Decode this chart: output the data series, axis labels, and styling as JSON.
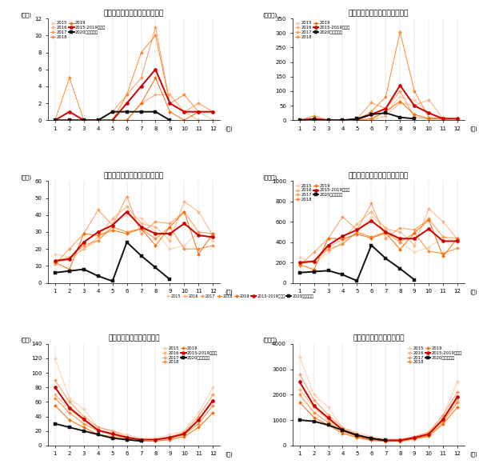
{
  "titles": [
    "腸管出血性大腸菌食中毒事例数",
    "腸管出血性大腸菌食中毒患者数",
    "カンピロバクター食中毒事例数",
    "カンピロバクター食中毒患者数",
    "ノロウイルス食中毒事例数",
    "ノロウイルス食中毒患者数"
  ],
  "ylabel_cases": "(件数)",
  "ylabel_patients": "(患者数)",
  "xlabel": "(月)",
  "months": [
    1,
    2,
    3,
    4,
    5,
    6,
    7,
    8,
    9,
    10,
    11,
    12
  ],
  "legend_labels": [
    "2015",
    "2016",
    "2017",
    "2018",
    "2019",
    "2015-2019の平均",
    "2020（速報値）"
  ],
  "colors": {
    "2015": "#FFCCAA",
    "2016": "#FFB07A",
    "2017": "#FF9955",
    "2018": "#FF8830",
    "2019": "#FF6600",
    "avg": "#CC0000",
    "2020": "#111111"
  },
  "panel0": {
    "ylim": [
      0,
      12
    ],
    "yticks": [
      0,
      2,
      4,
      6,
      8,
      10,
      12
    ],
    "data_2015": [
      0,
      0,
      0,
      0,
      0,
      0,
      2,
      3,
      3,
      1,
      1,
      0
    ],
    "data_2016": [
      0,
      0,
      0,
      0,
      0,
      0,
      2,
      3,
      3,
      1,
      0,
      0
    ],
    "data_2017": [
      0,
      0,
      0,
      0,
      1,
      3,
      5,
      11,
      2,
      1,
      2,
      1
    ],
    "data_2018": [
      0,
      5,
      0,
      0,
      0,
      3,
      8,
      10,
      2,
      3,
      1,
      1
    ],
    "data_2019": [
      0,
      0,
      0,
      0,
      0,
      0,
      2,
      5,
      1,
      0,
      1,
      1
    ],
    "data_avg": [
      0,
      1,
      0,
      0,
      0,
      2,
      4,
      6,
      2,
      1,
      1,
      1
    ],
    "data_2020": [
      0,
      0,
      0,
      0,
      1,
      1,
      1,
      1,
      0,
      null,
      null,
      null
    ]
  },
  "panel1": {
    "ylim": [
      0,
      350
    ],
    "yticks": [
      0,
      50,
      100,
      150,
      200,
      250,
      300,
      350
    ],
    "data_2015": [
      0,
      0,
      0,
      0,
      0,
      0,
      30,
      80,
      70,
      25,
      0,
      0
    ],
    "data_2016": [
      0,
      0,
      0,
      0,
      0,
      0,
      15,
      60,
      50,
      70,
      5,
      5
    ],
    "data_2017": [
      0,
      0,
      0,
      0,
      5,
      60,
      40,
      100,
      10,
      5,
      10,
      5
    ],
    "data_2018": [
      0,
      15,
      0,
      0,
      0,
      30,
      80,
      305,
      100,
      10,
      5,
      5
    ],
    "data_2019": [
      0,
      0,
      0,
      0,
      0,
      5,
      30,
      65,
      20,
      5,
      5,
      5
    ],
    "data_avg": [
      0,
      5,
      0,
      0,
      2,
      20,
      40,
      120,
      50,
      25,
      5,
      5
    ],
    "data_2020": [
      0,
      0,
      0,
      0,
      5,
      20,
      25,
      10,
      5,
      null,
      null,
      null
    ]
  },
  "panel2": {
    "ylim": [
      0,
      60
    ],
    "yticks": [
      0,
      10,
      20,
      30,
      40,
      50,
      60
    ],
    "data_2015": [
      17,
      15,
      20,
      25,
      35,
      40,
      38,
      30,
      20,
      22,
      30,
      25
    ],
    "data_2016": [
      12,
      14,
      20,
      27,
      38,
      45,
      35,
      33,
      25,
      48,
      42,
      28
    ],
    "data_2017": [
      11,
      20,
      29,
      43,
      34,
      51,
      29,
      36,
      35,
      42,
      30,
      29
    ],
    "data_2018": [
      13,
      15,
      22,
      25,
      33,
      30,
      32,
      26,
      33,
      20,
      20,
      22
    ],
    "data_2019": [
      12,
      8,
      29,
      28,
      31,
      29,
      32,
      22,
      33,
      42,
      17,
      29
    ],
    "data_avg": [
      13,
      14,
      24,
      30,
      34,
      42,
      33,
      29,
      29,
      35,
      28,
      27
    ],
    "data_2020": [
      6,
      7,
      8,
      4,
      1,
      24,
      16,
      9,
      2,
      null,
      null,
      null
    ]
  },
  "panel3": {
    "ylim": [
      0,
      1000
    ],
    "yticks": [
      0,
      200,
      400,
      600,
      800,
      1000
    ],
    "data_2015": [
      250,
      200,
      300,
      400,
      500,
      650,
      550,
      400,
      300,
      350,
      450,
      400
    ],
    "data_2016": [
      180,
      220,
      350,
      430,
      580,
      700,
      530,
      500,
      370,
      730,
      600,
      430
    ],
    "data_2017": [
      170,
      300,
      440,
      650,
      520,
      780,
      440,
      540,
      520,
      630,
      450,
      440
    ],
    "data_2018": [
      200,
      220,
      330,
      380,
      500,
      450,
      500,
      400,
      490,
      310,
      290,
      340
    ],
    "data_2019": [
      180,
      130,
      440,
      430,
      480,
      440,
      490,
      330,
      490,
      620,
      260,
      440
    ],
    "data_avg": [
      200,
      210,
      370,
      460,
      520,
      610,
      500,
      435,
      435,
      530,
      410,
      410
    ],
    "data_2020": [
      100,
      110,
      120,
      80,
      20,
      370,
      240,
      140,
      30,
      null,
      null,
      null
    ]
  },
  "panel4": {
    "ylim": [
      0,
      140
    ],
    "yticks": [
      0,
      20,
      40,
      60,
      80,
      100,
      120,
      140
    ],
    "data_2015": [
      120,
      65,
      50,
      25,
      20,
      15,
      10,
      10,
      15,
      20,
      45,
      80
    ],
    "data_2016": [
      70,
      50,
      35,
      20,
      15,
      10,
      8,
      8,
      10,
      15,
      35,
      60
    ],
    "data_2017": [
      90,
      60,
      40,
      25,
      20,
      12,
      8,
      8,
      12,
      18,
      40,
      70
    ],
    "data_2018": [
      65,
      45,
      30,
      20,
      15,
      10,
      8,
      8,
      10,
      15,
      30,
      55
    ],
    "data_2019": [
      55,
      35,
      25,
      15,
      12,
      8,
      6,
      6,
      8,
      12,
      25,
      45
    ],
    "data_avg": [
      80,
      52,
      36,
      21,
      16,
      11,
      8,
      8,
      11,
      16,
      35,
      62
    ],
    "data_2020": [
      30,
      25,
      20,
      15,
      10,
      8,
      6,
      null,
      null,
      null,
      null,
      null
    ]
  },
  "panel5": {
    "ylim": [
      0,
      4000
    ],
    "yticks": [
      0,
      1000,
      2000,
      3000,
      4000
    ],
    "data_2015": [
      3500,
      2000,
      1500,
      700,
      500,
      350,
      250,
      250,
      350,
      500,
      1200,
      2500
    ],
    "data_2016": [
      2200,
      1500,
      1000,
      600,
      400,
      250,
      200,
      200,
      300,
      450,
      1000,
      1800
    ],
    "data_2017": [
      2800,
      1800,
      1200,
      700,
      450,
      300,
      220,
      220,
      350,
      520,
      1200,
      2100
    ],
    "data_2018": [
      2000,
      1300,
      900,
      550,
      350,
      220,
      180,
      180,
      280,
      400,
      950,
      1700
    ],
    "data_2019": [
      1700,
      1100,
      800,
      480,
      310,
      200,
      160,
      160,
      250,
      360,
      850,
      1500
    ],
    "data_avg": [
      2500,
      1560,
      1080,
      610,
      402,
      264,
      202,
      202,
      306,
      446,
      1040,
      1920
    ],
    "data_2020": [
      1000,
      950,
      800,
      600,
      400,
      280,
      200,
      null,
      null,
      null,
      null,
      null
    ]
  }
}
